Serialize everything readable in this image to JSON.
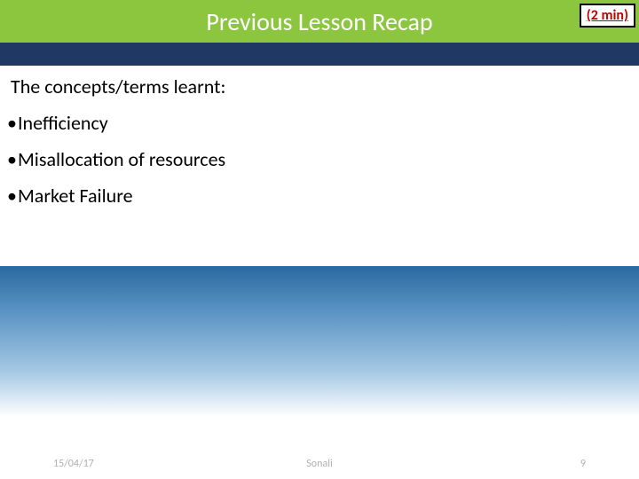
{
  "title": "Previous Lesson Recap",
  "time_badge": "(2 min)",
  "intro": "The concepts/terms  learnt:",
  "bullets": [
    "Inefficiency",
    "Misallocation of resources",
    "Market Failure"
  ],
  "footer": {
    "date": "15/04/17",
    "author": "Sonali",
    "page": "9"
  },
  "colors": {
    "title_band": "#8cc63f",
    "title_text": "#ffffff",
    "blue_band": "#1f3864",
    "badge_text": "#c00000",
    "body_text": "#000000",
    "footer_text": "#b0b0b0",
    "gradient_top": "#2a6aa0",
    "gradient_bottom": "#ffffff"
  }
}
